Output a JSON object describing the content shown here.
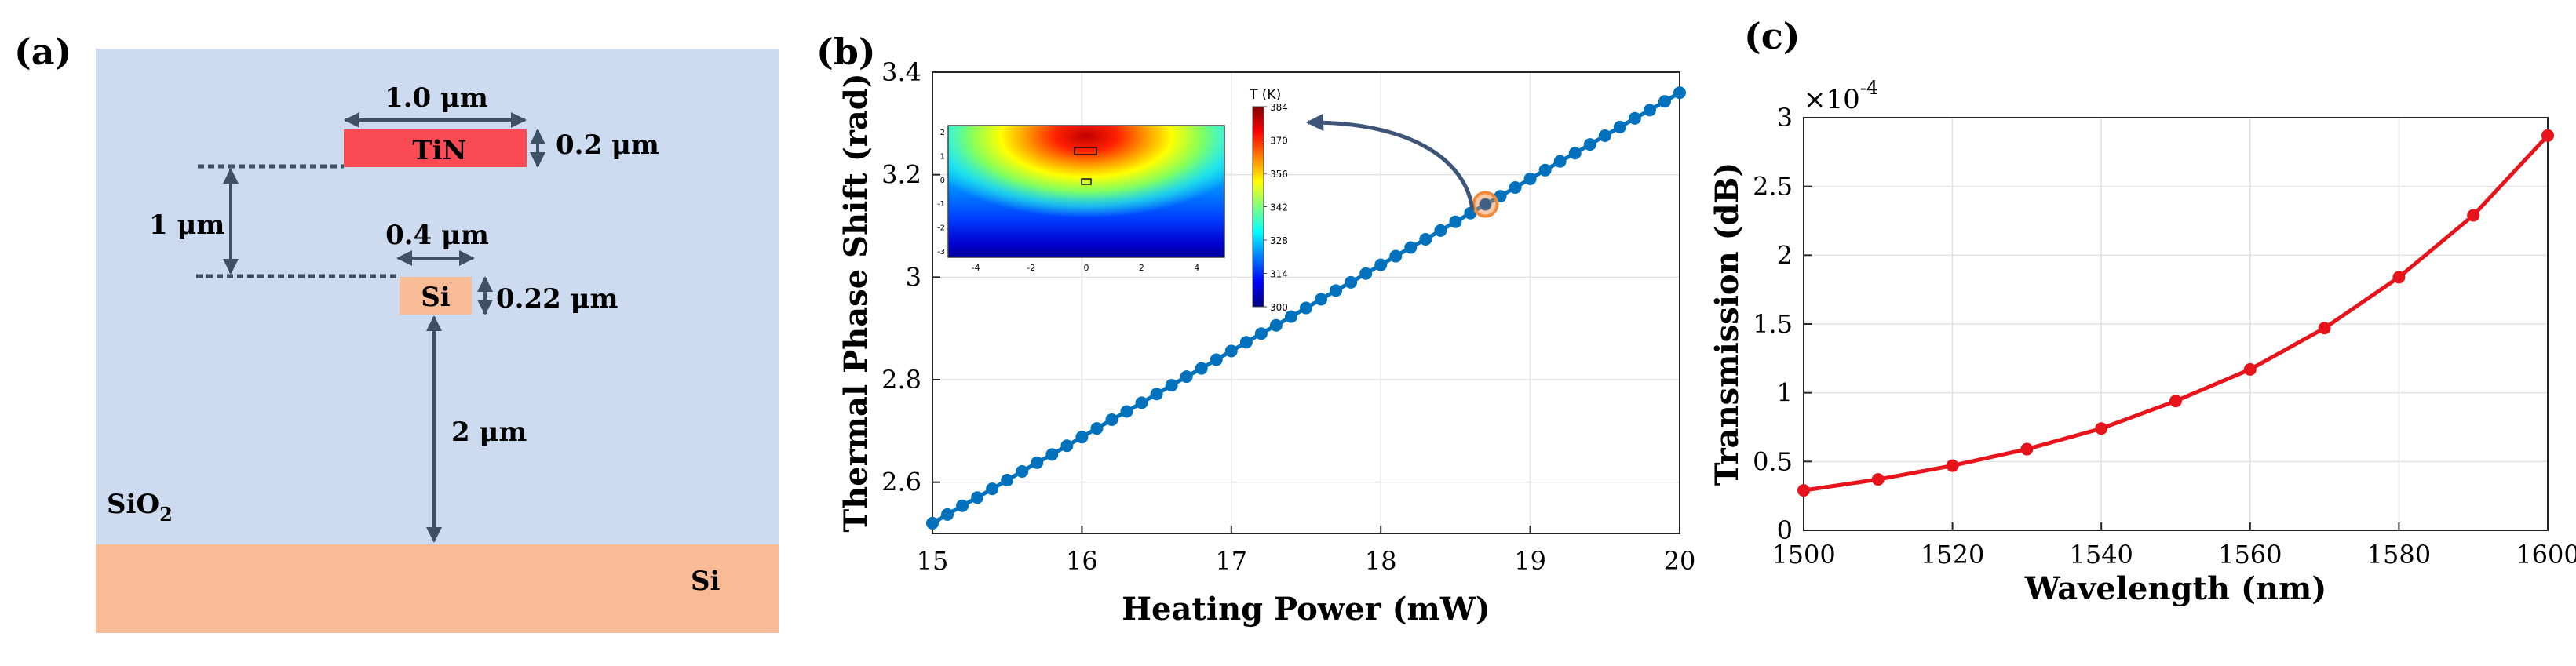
{
  "panel_a": {
    "label": "(a)",
    "tin_label": "TiN",
    "si_wg_label": "Si",
    "si_sub_label": "Si",
    "sio2_label": "SiO",
    "sio2_sub": "2",
    "dim_tin_width": "1.0 μm",
    "dim_tin_height": "0.2 μm",
    "dim_gap": "1 μm",
    "dim_si_width": "0.4 μm",
    "dim_si_height": "0.22 μm",
    "dim_box": "2 μm",
    "colors": {
      "cladding": "#cddbf1",
      "tin": "#fa4b55",
      "si": "#f8bb96",
      "arrow": "#3e4f66"
    }
  },
  "panel_b": {
    "label": "(b)",
    "xlabel": "Heating Power (mW)",
    "ylabel": "Thermal Phase Shift (rad)",
    "xticks": [
      "15",
      "16",
      "17",
      "18",
      "19",
      "20"
    ],
    "yticks": [
      "2.6",
      "2.8",
      "3",
      "3.2",
      "3.4"
    ],
    "inset": {
      "colorbar_title": "T (K)",
      "colorbar_ticks": [
        "384",
        "370",
        "356",
        "342",
        "328",
        "314",
        "300"
      ],
      "x_ticks": [
        "-4",
        "-2",
        "0",
        "2",
        "4"
      ],
      "y_ticks": [
        "2",
        "1",
        "0",
        "-1",
        "-2",
        "-3"
      ]
    },
    "colors": {
      "line": "#0072bd",
      "highlight": "#f08a3c"
    }
  },
  "panel_c": {
    "label": "(c)",
    "xlabel": "Wavelength (nm)",
    "ylabel": "Transmission (dB)",
    "exponent_base": "×10",
    "exponent_power": "-4",
    "xticks": [
      "1500",
      "1520",
      "1540",
      "1560",
      "1580",
      "1600"
    ],
    "yticks": [
      "0",
      "0.5",
      "1",
      "1.5",
      "2",
      "2.5",
      "3"
    ],
    "colors": {
      "line": "#e8141c"
    }
  },
  "chart_data": [
    {
      "type": "line",
      "title": "",
      "xlabel": "Heating Power (mW)",
      "ylabel": "Thermal Phase Shift (rad)",
      "xlim": [
        15,
        20
      ],
      "ylim": [
        2.5,
        3.4
      ],
      "grid": true,
      "x": [
        15,
        15.1,
        15.2,
        15.3,
        15.4,
        15.5,
        15.6,
        15.7,
        15.8,
        15.9,
        16,
        16.1,
        16.2,
        16.3,
        16.4,
        16.5,
        16.6,
        16.7,
        16.8,
        16.9,
        17,
        17.1,
        17.2,
        17.3,
        17.4,
        17.5,
        17.6,
        17.7,
        17.8,
        17.9,
        18,
        18.1,
        18.2,
        18.3,
        18.4,
        18.5,
        18.6,
        18.7,
        18.8,
        18.9,
        19,
        19.1,
        19.2,
        19.3,
        19.4,
        19.5,
        19.6,
        19.7,
        19.8,
        19.9,
        20
      ],
      "y": [
        2.52,
        2.537,
        2.554,
        2.57,
        2.587,
        2.604,
        2.621,
        2.638,
        2.654,
        2.671,
        2.688,
        2.705,
        2.722,
        2.738,
        2.755,
        2.772,
        2.789,
        2.806,
        2.822,
        2.839,
        2.856,
        2.873,
        2.89,
        2.906,
        2.923,
        2.94,
        2.957,
        2.974,
        2.99,
        3.007,
        3.024,
        3.041,
        3.058,
        3.074,
        3.091,
        3.108,
        3.125,
        3.142,
        3.158,
        3.175,
        3.192,
        3.209,
        3.226,
        3.242,
        3.259,
        3.276,
        3.293,
        3.31,
        3.326,
        3.343,
        3.36
      ],
      "highlight_point": {
        "x": 18.7,
        "y": 3.142
      }
    },
    {
      "type": "line",
      "title": "",
      "xlabel": "Wavelength (nm)",
      "ylabel": "Transmission (dB)",
      "y_multiplier": "×10^-4",
      "xlim": [
        1500,
        1600
      ],
      "ylim": [
        0,
        3
      ],
      "grid": true,
      "x": [
        1500,
        1510,
        1520,
        1530,
        1540,
        1550,
        1560,
        1570,
        1580,
        1590,
        1600
      ],
      "y": [
        0.29,
        0.37,
        0.47,
        0.59,
        0.74,
        0.94,
        1.17,
        1.47,
        1.84,
        2.29,
        2.87
      ]
    }
  ]
}
